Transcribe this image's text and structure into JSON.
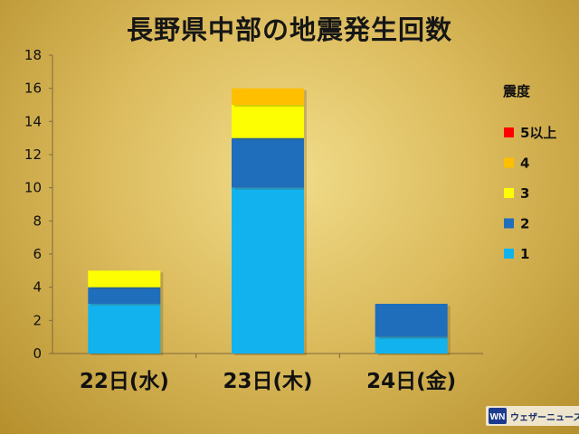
{
  "chart_data": {
    "type": "bar",
    "stacked": true,
    "title": "長野県中部の地震発生回数",
    "categories": [
      "22日(水)",
      "23日(木)",
      "24日(金)"
    ],
    "series": [
      {
        "name": "1",
        "values": [
          3,
          10,
          1
        ],
        "color": "#12b2ee"
      },
      {
        "name": "2",
        "values": [
          1,
          3,
          2
        ],
        "color": "#1f6ebc"
      },
      {
        "name": "3",
        "values": [
          1,
          2,
          0
        ],
        "color": "#fefe02"
      },
      {
        "name": "4",
        "values": [
          0,
          1,
          0
        ],
        "color": "#fdbf00"
      },
      {
        "name": "5以上",
        "values": [
          0,
          0,
          0
        ],
        "color": "#fe0000"
      }
    ],
    "ylim": [
      0,
      18
    ],
    "yticks": [
      0,
      2,
      4,
      6,
      8,
      10,
      12,
      14,
      16,
      18
    ],
    "grid": false,
    "legend_title": "震度",
    "legend_position": "right"
  },
  "brand": {
    "logo_text": "WN",
    "name": "ウェザーニュース"
  }
}
